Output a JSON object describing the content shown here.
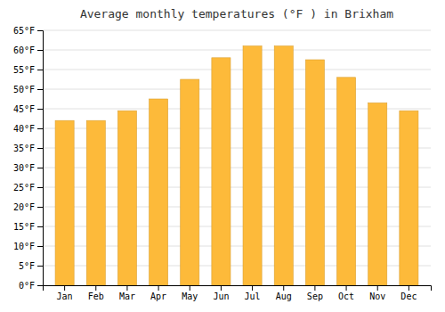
{
  "chart_data": {
    "type": "bar",
    "title": "Average monthly temperatures (°F ) in Brixham",
    "categories": [
      "Jan",
      "Feb",
      "Mar",
      "Apr",
      "May",
      "Jun",
      "Jul",
      "Aug",
      "Sep",
      "Oct",
      "Nov",
      "Dec"
    ],
    "values": [
      42,
      42,
      44.5,
      47.5,
      52.5,
      58,
      61,
      61,
      57.5,
      53,
      46.5,
      44.5
    ],
    "color": "#FDBA3A",
    "ylim": [
      0,
      65
    ],
    "yticks": [
      {
        "value": 0,
        "label": "0°F"
      },
      {
        "value": 5,
        "label": "5°F"
      },
      {
        "value": 10,
        "label": "10°F"
      },
      {
        "value": 15,
        "label": "15°F"
      },
      {
        "value": 20,
        "label": "20°F"
      },
      {
        "value": 25,
        "label": "25°F"
      },
      {
        "value": 30,
        "label": "30°F"
      },
      {
        "value": 35,
        "label": "35°F"
      },
      {
        "value": 40,
        "label": "40°F"
      },
      {
        "value": 45,
        "label": "45°F"
      },
      {
        "value": 50,
        "label": "50°F"
      },
      {
        "value": 55,
        "label": "55°F"
      },
      {
        "value": 60,
        "label": "60°F"
      },
      {
        "value": 65,
        "label": "65°F"
      }
    ],
    "grid": true
  }
}
